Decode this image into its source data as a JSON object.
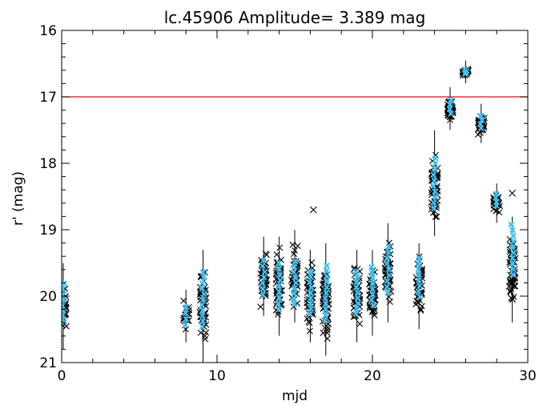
{
  "chart_data": {
    "type": "scatter",
    "title": "lc.45906 Amplitude=  3.389 mag",
    "xlabel": "mjd",
    "ylabel": "r' (mag)",
    "xlim": [
      0,
      30
    ],
    "ylim": [
      21,
      16
    ],
    "y_inverted": true,
    "xticks": [
      0,
      10,
      20,
      30
    ],
    "yticks": [
      16,
      17,
      18,
      19,
      20,
      21
    ],
    "grid": false,
    "legend": "none",
    "reference_line": {
      "y": 17.0,
      "color": "#ff0000"
    },
    "colors": {
      "raw_points": "#000000",
      "binned_points": "#3ec0f0",
      "axis": "#000000"
    },
    "series": [
      {
        "marker": "x",
        "color": "#000000",
        "clusters": [
          {
            "x": 0.1,
            "y_min": 19.6,
            "y_max": 20.7,
            "count": 40
          },
          {
            "x": 8.0,
            "y_min": 20.0,
            "y_max": 20.6,
            "count": 20
          },
          {
            "x": 9.1,
            "y_min": 19.4,
            "y_max": 20.9,
            "count": 50
          },
          {
            "x": 13.0,
            "y_min": 19.2,
            "y_max": 20.2,
            "count": 50
          },
          {
            "x": 14.0,
            "y_min": 19.2,
            "y_max": 20.5,
            "count": 50
          },
          {
            "x": 15.0,
            "y_min": 19.1,
            "y_max": 20.3,
            "count": 50
          },
          {
            "x": 16.0,
            "y_min": 19.4,
            "y_max": 20.6,
            "count": 55
          },
          {
            "x": 17.0,
            "y_min": 19.3,
            "y_max": 20.8,
            "count": 60
          },
          {
            "x": 19.0,
            "y_min": 19.4,
            "y_max": 20.6,
            "count": 45
          },
          {
            "x": 20.0,
            "y_min": 19.4,
            "y_max": 20.5,
            "count": 45
          },
          {
            "x": 21.0,
            "y_min": 19.0,
            "y_max": 20.3,
            "count": 50
          },
          {
            "x": 23.0,
            "y_min": 19.3,
            "y_max": 20.4,
            "count": 45
          },
          {
            "x": 24.0,
            "y_min": 17.6,
            "y_max": 19.0,
            "count": 55
          },
          {
            "x": 25.0,
            "y_min": 16.95,
            "y_max": 17.4,
            "count": 35
          },
          {
            "x": 26.0,
            "y_min": 16.55,
            "y_max": 16.7,
            "count": 25
          },
          {
            "x": 27.0,
            "y_min": 17.2,
            "y_max": 17.6,
            "count": 35
          },
          {
            "x": 28.0,
            "y_min": 18.4,
            "y_max": 18.8,
            "count": 30
          },
          {
            "x": 29.0,
            "y_min": 18.9,
            "y_max": 20.3,
            "count": 50
          }
        ],
        "outliers": [
          {
            "x": 16.2,
            "y": 18.7
          },
          {
            "x": 29.0,
            "y": 18.45
          }
        ]
      },
      {
        "marker": "x",
        "color": "#3ec0f0",
        "binned_means": [
          {
            "x": 0.1,
            "y": 20.1
          },
          {
            "x": 8.0,
            "y": 20.3
          },
          {
            "x": 9.1,
            "y": 20.05
          },
          {
            "x": 13.0,
            "y": 19.72
          },
          {
            "x": 14.0,
            "y": 19.85
          },
          {
            "x": 15.0,
            "y": 19.8
          },
          {
            "x": 16.0,
            "y": 19.95
          },
          {
            "x": 17.0,
            "y": 19.95
          },
          {
            "x": 19.0,
            "y": 19.95
          },
          {
            "x": 20.0,
            "y": 19.85
          },
          {
            "x": 21.0,
            "y": 19.6
          },
          {
            "x": 23.0,
            "y": 19.72
          },
          {
            "x": 24.0,
            "y": 18.3
          },
          {
            "x": 25.0,
            "y": 17.15
          },
          {
            "x": 26.0,
            "y": 16.62
          },
          {
            "x": 27.0,
            "y": 17.38
          },
          {
            "x": 28.0,
            "y": 18.55
          },
          {
            "x": 29.0,
            "y": 19.3
          }
        ]
      }
    ]
  }
}
